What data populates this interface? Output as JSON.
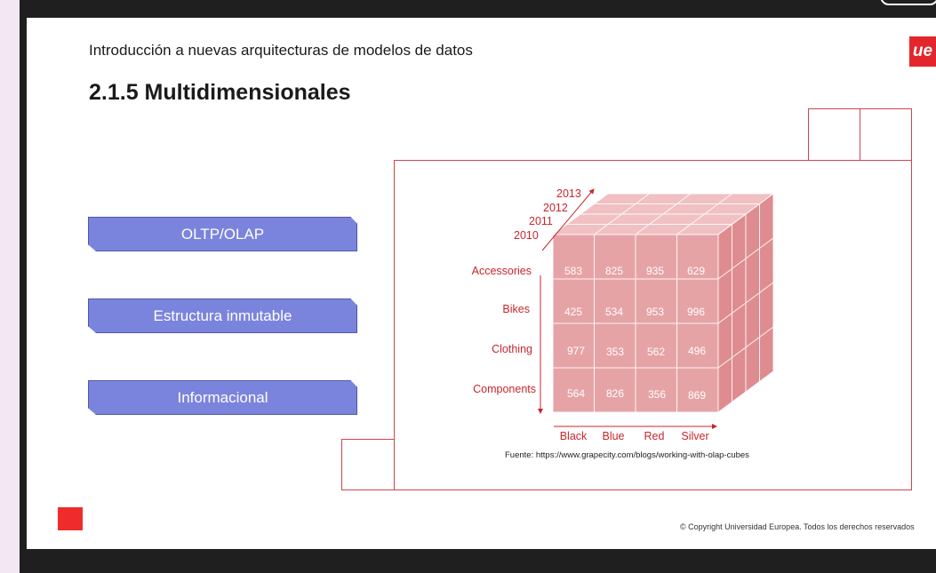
{
  "header": {
    "subtitle": "Introducción a nuevas arquitecturas de modelos de datos",
    "title": "2.1.5 Multidimensionales",
    "logo": "ue"
  },
  "pills": [
    "OLTP/OLAP",
    "Estructura inmutable",
    "Informacional"
  ],
  "cube": {
    "years": [
      "2013",
      "2012",
      "2011",
      "2010"
    ],
    "rows": [
      "Accessories",
      "Bikes",
      "Clothing",
      "Components"
    ],
    "columns": [
      "Black",
      "Blue",
      "Red",
      "Silver"
    ],
    "values": [
      [
        "583",
        "825",
        "935",
        "629"
      ],
      [
        "425",
        "534",
        "953",
        "996"
      ],
      [
        "977",
        "353",
        "562",
        "496"
      ],
      [
        "564",
        "826",
        "356",
        "869"
      ]
    ]
  },
  "caption": "Fuente: https://www.grapecity.com/blogs/working-with-olap-cubes",
  "copyright": "© Copyright Universidad Europea. Todos los derechos reservados",
  "colors": {
    "accent": "#c8262c",
    "pill": "#7b84dd",
    "cube_front": "#e6a3a6",
    "cube_top": "#f0c0c2",
    "cube_side": "#de8c90"
  }
}
